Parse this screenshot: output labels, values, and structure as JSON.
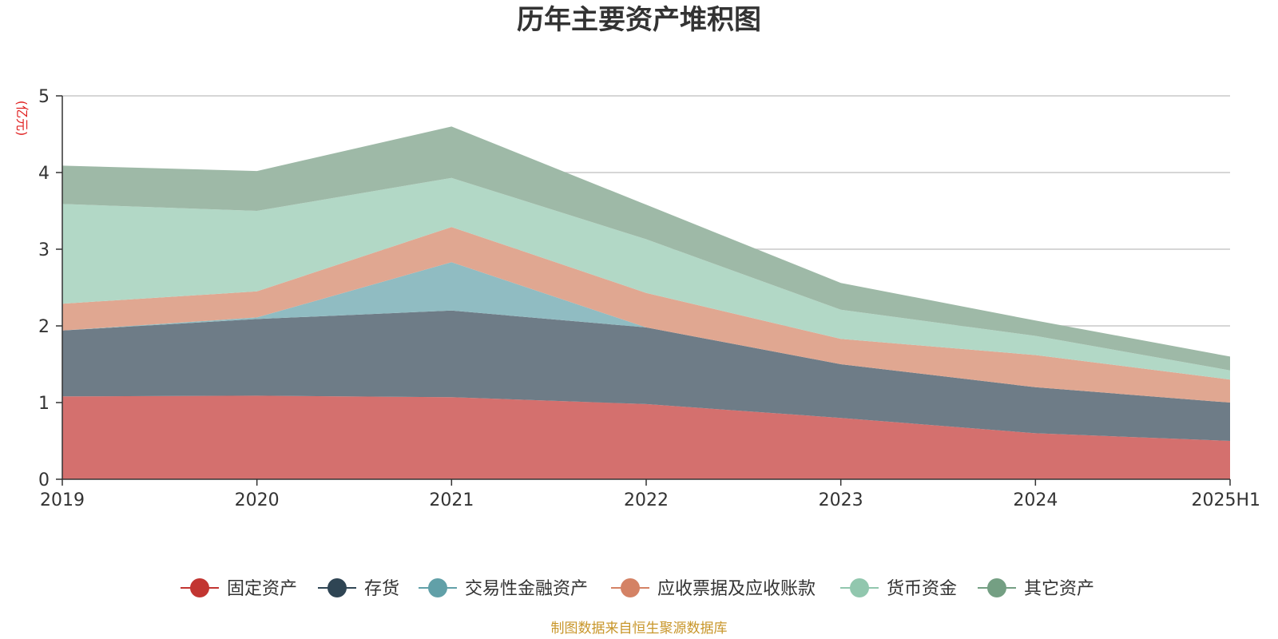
{
  "chart_data": {
    "type": "area",
    "stacked": true,
    "title": "历年主要资产堆积图",
    "unit": "(亿元)",
    "source": "制图数据来自恒生聚源数据库",
    "categories": [
      "2019",
      "2020",
      "2021",
      "2022",
      "2023",
      "2024",
      "2025H1"
    ],
    "yticks": [
      "0",
      "1",
      "2",
      "3",
      "4",
      "5"
    ],
    "ylim": [
      0,
      5
    ],
    "grid": true,
    "legend_position": "bottom-center",
    "series": [
      {
        "name": "固定资产",
        "color": "#c23531",
        "area_color": "#d4706e",
        "values": [
          1.08,
          1.09,
          1.07,
          0.98,
          0.8,
          0.6,
          0.5
        ]
      },
      {
        "name": "存货",
        "color": "#2f4554",
        "area_color": "#6e7c87",
        "values": [
          0.86,
          1.0,
          1.13,
          1.0,
          0.7,
          0.6,
          0.5
        ]
      },
      {
        "name": "交易性金融资产",
        "color": "#61a0a8",
        "area_color": "#90bcc2",
        "values": [
          0.0,
          0.02,
          0.63,
          0.0,
          0.0,
          0.0,
          0.0
        ]
      },
      {
        "name": "应收票据及应收账款",
        "color": "#d48265",
        "area_color": "#e0a791",
        "values": [
          0.35,
          0.34,
          0.46,
          0.45,
          0.33,
          0.42,
          0.3
        ]
      },
      {
        "name": "货币资金",
        "color": "#91c7ae",
        "area_color": "#b2d8c6",
        "values": [
          1.3,
          1.05,
          0.64,
          0.7,
          0.38,
          0.25,
          0.12
        ]
      },
      {
        "name": "其它资产",
        "color": "#749f83",
        "area_color": "#9eb9a7",
        "values": [
          0.5,
          0.52,
          0.67,
          0.45,
          0.35,
          0.2,
          0.18
        ]
      }
    ]
  }
}
